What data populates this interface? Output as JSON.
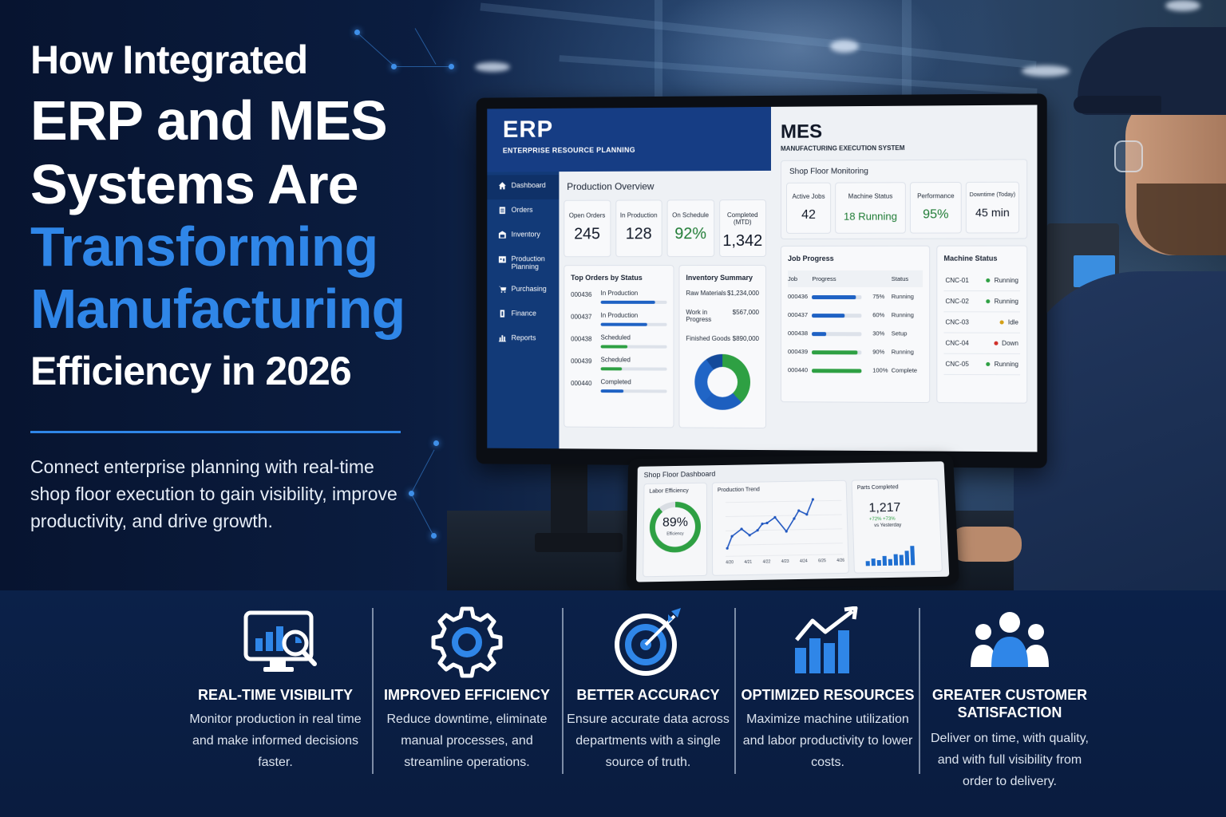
{
  "headline": {
    "line1": "How Integrated",
    "line2": "ERP and MES",
    "line3": "Systems Are",
    "line4": "Transforming",
    "line5": "Manufacturing",
    "line6": "Efficiency in 2026",
    "subtitle": "Connect enterprise planning with real-time shop floor execution to gain visibility, improve productivity, and drive growth."
  },
  "colors": {
    "accent_blue": "#2f86e8",
    "navy": "#0a1c3f",
    "erp_blue": "#163d84",
    "green": "#2ea043",
    "amber": "#d4a017",
    "red": "#d0302a"
  },
  "erp": {
    "title": "ERP",
    "subtitle": "ENTERPRISE RESOURCE PLANNING",
    "nav": [
      {
        "label": "Dashboard",
        "icon": "home-icon"
      },
      {
        "label": "Orders",
        "icon": "clipboard-icon"
      },
      {
        "label": "Inventory",
        "icon": "warehouse-icon"
      },
      {
        "label": "Production Planning",
        "icon": "planning-icon"
      },
      {
        "label": "Purchasing",
        "icon": "cart-icon"
      },
      {
        "label": "Finance",
        "icon": "finance-icon"
      },
      {
        "label": "Reports",
        "icon": "reports-icon"
      }
    ],
    "overview_title": "Production Overview",
    "kpis": [
      {
        "label": "Open Orders",
        "value": "245"
      },
      {
        "label": "In Production",
        "value": "128"
      },
      {
        "label": "On Schedule",
        "value": "92%"
      },
      {
        "label": "Completed (MTD)",
        "value": "1,342"
      }
    ],
    "orders_title": "Top Orders by Status",
    "orders": [
      {
        "id": "000436",
        "status": "In Production",
        "progress": 82,
        "color": "#1f62c4"
      },
      {
        "id": "000437",
        "status": "In Production",
        "progress": 70,
        "color": "#1f62c4"
      },
      {
        "id": "000438",
        "status": "Scheduled",
        "progress": 40,
        "color": "#2ea043"
      },
      {
        "id": "000439",
        "status": "Scheduled",
        "progress": 32,
        "color": "#2ea043"
      },
      {
        "id": "000440",
        "status": "Completed",
        "progress": 35,
        "color": "#1f62c4"
      }
    ],
    "inventory_title": "Inventory Summary",
    "inventory": [
      {
        "label": "Raw Materials",
        "value": "$1,234,000"
      },
      {
        "label": "Work in Progress",
        "value": "$567,000"
      },
      {
        "label": "Finished Goods",
        "value": "$890,000"
      }
    ]
  },
  "mes": {
    "title": "MES",
    "subtitle": "MANUFACTURING EXECUTION SYSTEM",
    "monitor_title": "Shop Floor Monitoring",
    "kpis": [
      {
        "label": "Active Jobs",
        "value": "42"
      },
      {
        "label": "Machine Status",
        "value": "18 Running"
      },
      {
        "label": "Performance",
        "value": "95%"
      },
      {
        "label": "Downtime (Today)",
        "value": "45 min"
      }
    ],
    "jobs_title": "Job Progress",
    "jobs_headers": [
      "Job",
      "Progress",
      "Status"
    ],
    "jobs": [
      {
        "id": "000436",
        "pct": "75%",
        "progress": 88,
        "status": "Running",
        "color": "#1f62c4"
      },
      {
        "id": "000437",
        "pct": "60%",
        "progress": 66,
        "status": "Running",
        "color": "#1f62c4"
      },
      {
        "id": "000438",
        "pct": "30%",
        "progress": 28,
        "status": "Setup",
        "color": "#1f62c4"
      },
      {
        "id": "000439",
        "pct": "90%",
        "progress": 92,
        "status": "Running",
        "color": "#2ea043"
      },
      {
        "id": "000440",
        "pct": "100%",
        "progress": 100,
        "status": "Complete",
        "color": "#2ea043"
      }
    ],
    "machines_title": "Machine Status",
    "machines": [
      {
        "name": "CNC-01",
        "status": "Running",
        "color": "#2ea043"
      },
      {
        "name": "CNC-02",
        "status": "Running",
        "color": "#2ea043"
      },
      {
        "name": "CNC-03",
        "status": "Idle",
        "color": "#d4a017"
      },
      {
        "name": "CNC-04",
        "status": "Down",
        "color": "#d0302a"
      },
      {
        "name": "CNC-05",
        "status": "Running",
        "color": "#2ea043"
      }
    ]
  },
  "tablet": {
    "title": "Shop Floor Dashboard",
    "labor_title": "Labor Efficiency",
    "labor_value": "89%",
    "labor_sub": "Efficiency",
    "trend_title": "Production Trend",
    "trend_x_labels": [
      "4/20",
      "4/21",
      "4/22",
      "4/23",
      "4/24",
      "6/25",
      "4/26"
    ],
    "parts_title": "Parts Completed",
    "parts_value": "1,217",
    "parts_delta": "+72% +73%",
    "parts_vs": "vs Yesterday"
  },
  "features": [
    {
      "title": "REAL-TIME VISIBILITY",
      "desc": "Monitor production in real time and make informed decisions faster.",
      "icon": "monitor-analytics-icon"
    },
    {
      "title": "IMPROVED EFFICIENCY",
      "desc": "Reduce downtime, eliminate manual processes, and streamline operations.",
      "icon": "gear-icon"
    },
    {
      "title": "BETTER ACCURACY",
      "desc": "Ensure accurate data across departments with a single source of truth.",
      "icon": "target-icon"
    },
    {
      "title": "OPTIMIZED RESOURCES",
      "desc": "Maximize machine utilization and labor productivity to lower costs.",
      "icon": "growth-chart-icon"
    },
    {
      "title": "GREATER CUSTOMER SATISFACTION",
      "desc": "Deliver on time, with quality, and with full visibility from order to delivery.",
      "icon": "customers-icon"
    }
  ]
}
